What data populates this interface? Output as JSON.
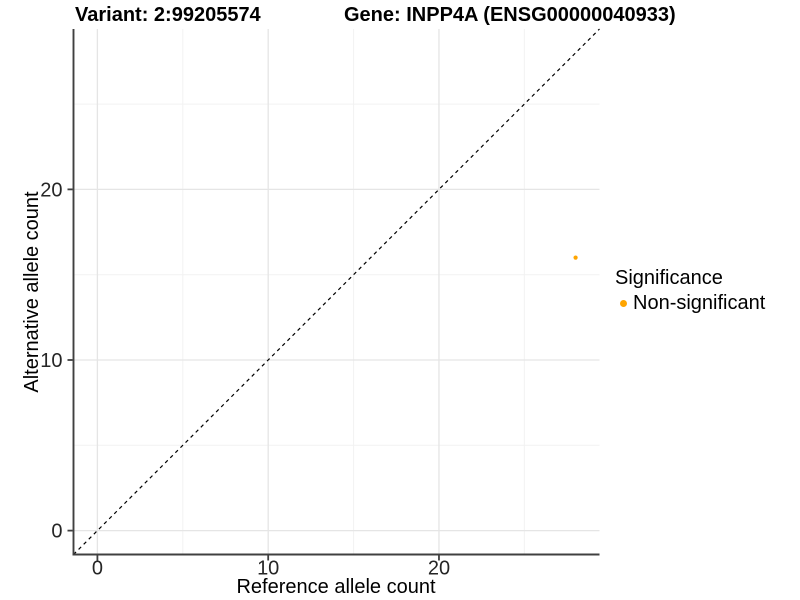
{
  "header": {
    "variant_title": "Variant: 2:99205574",
    "gene_title": "Gene: INPP4A (ENSG00000040933)"
  },
  "chart_data": {
    "type": "scatter",
    "xlabel": "Reference allele count",
    "ylabel": "Alternative allele count",
    "xlim": [
      -1.4,
      29.4
    ],
    "ylim": [
      -1.4,
      29.4
    ],
    "x_ticks": [
      0,
      10,
      20
    ],
    "y_ticks": [
      0,
      10,
      20
    ],
    "minor_ticks": [
      5,
      15,
      25
    ],
    "grid": "major and minor gridlines on white panel",
    "identity_line": {
      "type": "y=x",
      "style": "dashed",
      "color": "#000000"
    },
    "series": [
      {
        "name": "Non-significant",
        "color": "#FFA500",
        "points": [
          {
            "x": 28,
            "y": 16
          }
        ]
      }
    ],
    "legend": {
      "title": "Significance",
      "position": "right",
      "items": [
        {
          "label": "Non-significant",
          "color": "#FFA500"
        }
      ]
    },
    "colors": {
      "point": "#FFA500",
      "axis_line": "#404040",
      "tick_mark": "#404040",
      "tick_label": "#262626",
      "grid_major": "#e5e5e5",
      "grid_minor": "#f2f2f2",
      "background": "#ffffff"
    }
  }
}
